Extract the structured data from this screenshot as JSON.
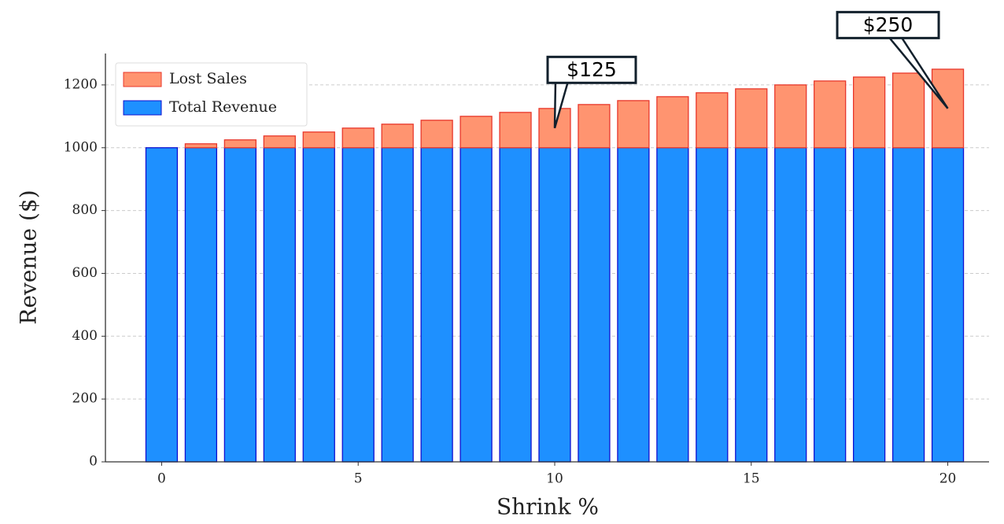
{
  "chart_data": {
    "type": "bar",
    "stacked": true,
    "xlabel": "Shrink %",
    "ylabel": "Revenue ($)",
    "x": [
      0,
      1,
      2,
      3,
      4,
      5,
      6,
      7,
      8,
      9,
      10,
      11,
      12,
      13,
      14,
      15,
      16,
      17,
      18,
      19,
      20
    ],
    "series": [
      {
        "name": "Total Revenue",
        "color": "#1e90ff",
        "edgecolor": "#1010d0",
        "values": [
          1000,
          1000,
          1000,
          1000,
          1000,
          1000,
          1000,
          1000,
          1000,
          1000,
          1000,
          1000,
          1000,
          1000,
          1000,
          1000,
          1000,
          1000,
          1000,
          1000,
          1000
        ]
      },
      {
        "name": "Lost Sales",
        "color": "#ff9470",
        "edgecolor": "#e8372b",
        "values": [
          0,
          12.5,
          25,
          37.5,
          50,
          62.5,
          75,
          87.5,
          100,
          112.5,
          125,
          137.5,
          150,
          162.5,
          175,
          187.5,
          200,
          212.5,
          225,
          237.5,
          250
        ]
      }
    ],
    "xlim": [
      -1.43,
      21.05
    ],
    "ylim": [
      0,
      1300
    ],
    "xticks": [
      0,
      5,
      10,
      15,
      20
    ],
    "yticks": [
      0,
      200,
      400,
      600,
      800,
      1000,
      1200
    ],
    "grid": "y",
    "legend": "upper left",
    "annotations": [
      {
        "text": "$125",
        "x": 10
      },
      {
        "text": "$250",
        "x": 20
      }
    ]
  }
}
